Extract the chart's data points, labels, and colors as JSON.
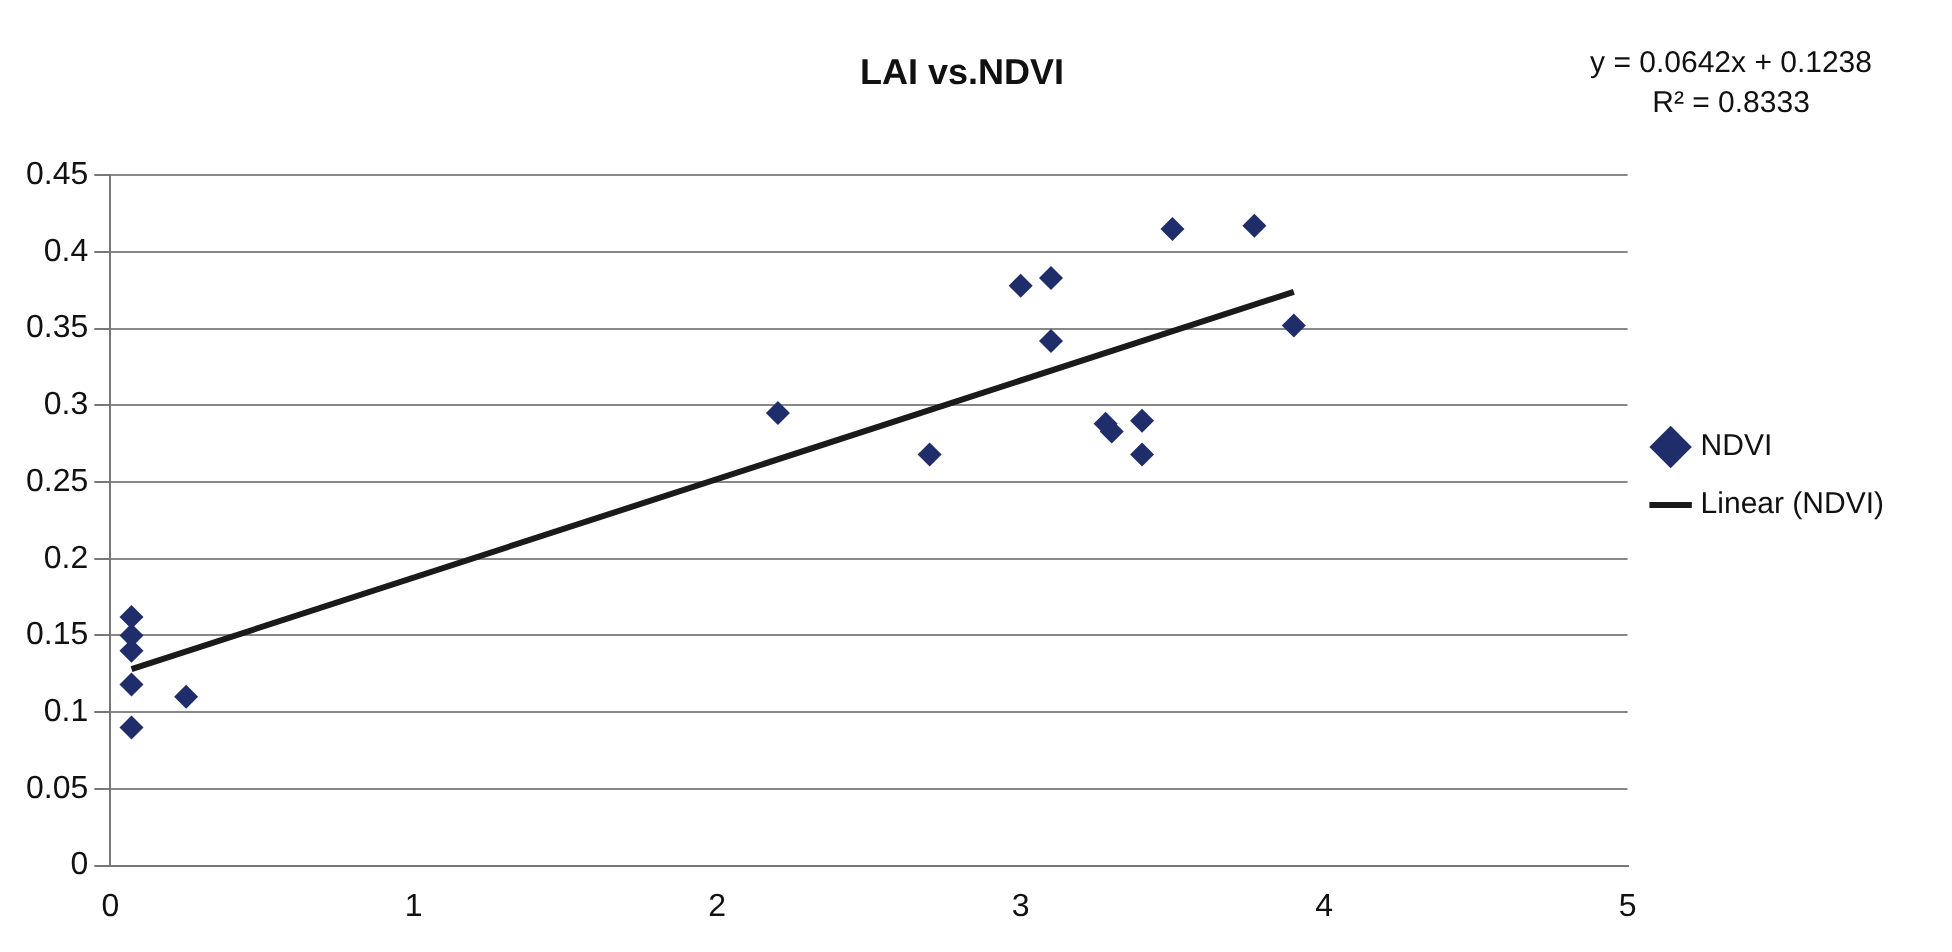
{
  "chart_data": {
    "type": "scatter",
    "title": "LAI vs.NDVI",
    "series": [
      {
        "name": "NDVI",
        "type": "scatter",
        "color": "#1f2d6b",
        "marker": "diamond",
        "x": [
          0.07,
          0.07,
          0.07,
          0.07,
          0.07,
          0.25,
          2.2,
          2.7,
          3.0,
          3.1,
          3.1,
          3.28,
          3.3,
          3.4,
          3.4,
          3.5,
          3.77,
          3.9
        ],
        "values": [
          0.162,
          0.15,
          0.14,
          0.118,
          0.09,
          0.11,
          0.295,
          0.268,
          0.378,
          0.383,
          0.342,
          0.288,
          0.283,
          0.29,
          0.268,
          0.415,
          0.417,
          0.352
        ]
      },
      {
        "name": "Linear (NDVI)",
        "type": "line",
        "color": "#1a1a1a",
        "marker": "none",
        "line_style": "solid",
        "x": [
          0.07,
          3.9
        ],
        "values": [
          0.128,
          0.374
        ]
      }
    ],
    "xlim": [
      0,
      5
    ],
    "xticks": [
      0,
      1,
      2,
      3,
      4,
      5
    ],
    "ylim": [
      0,
      0.45
    ],
    "yticks": [
      0,
      0.05,
      0.1,
      0.15,
      0.2,
      0.25,
      0.3,
      0.35,
      0.4,
      0.45
    ],
    "grid": "y",
    "legend": "right",
    "annotations": [
      "y = 0.0642x + 0.1238",
      "R² = 0.8333"
    ]
  }
}
